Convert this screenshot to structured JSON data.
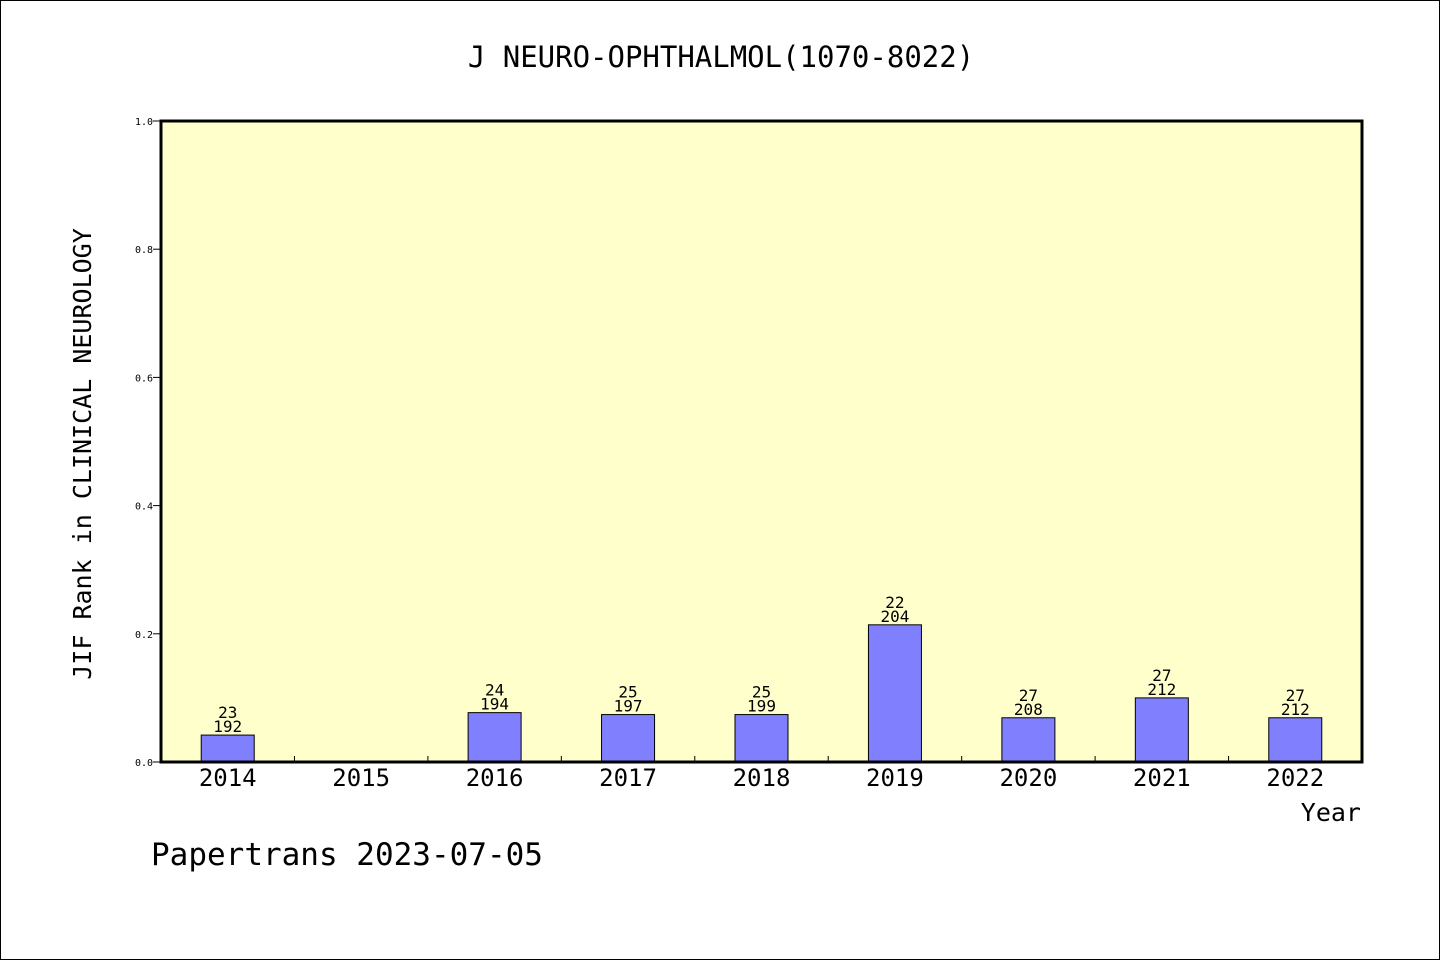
{
  "chart_data": {
    "type": "bar",
    "title": "J NEURO-OPHTHALMOL(1070-8022)",
    "xlabel": "Year",
    "ylabel": "JIF Rank in CLINICAL NEUROLOGY",
    "ylim": [
      0,
      1.0
    ],
    "yticks": [
      "0.0",
      "0.2",
      "0.4",
      "0.6",
      "0.8",
      "1.0"
    ],
    "grid": false,
    "categories": [
      "2014",
      "2015",
      "2016",
      "2017",
      "2018",
      "2019",
      "2020",
      "2021",
      "2022"
    ],
    "values": [
      0.042,
      null,
      0.077,
      0.074,
      0.074,
      0.214,
      0.069,
      0.1,
      0.069
    ],
    "rank_labels": [
      "23",
      "",
      "24",
      "25",
      "25",
      "22",
      "27",
      "27",
      "27"
    ],
    "total_labels": [
      "192",
      "",
      "194",
      "197",
      "199",
      "204",
      "208",
      "212",
      "212"
    ],
    "colors": {
      "plot_background": "#ffffcc",
      "bar_fill": "#8080ff",
      "bar_stroke": "#000000"
    }
  },
  "footer": {
    "watermark": "Papertrans 2023-07-05"
  }
}
